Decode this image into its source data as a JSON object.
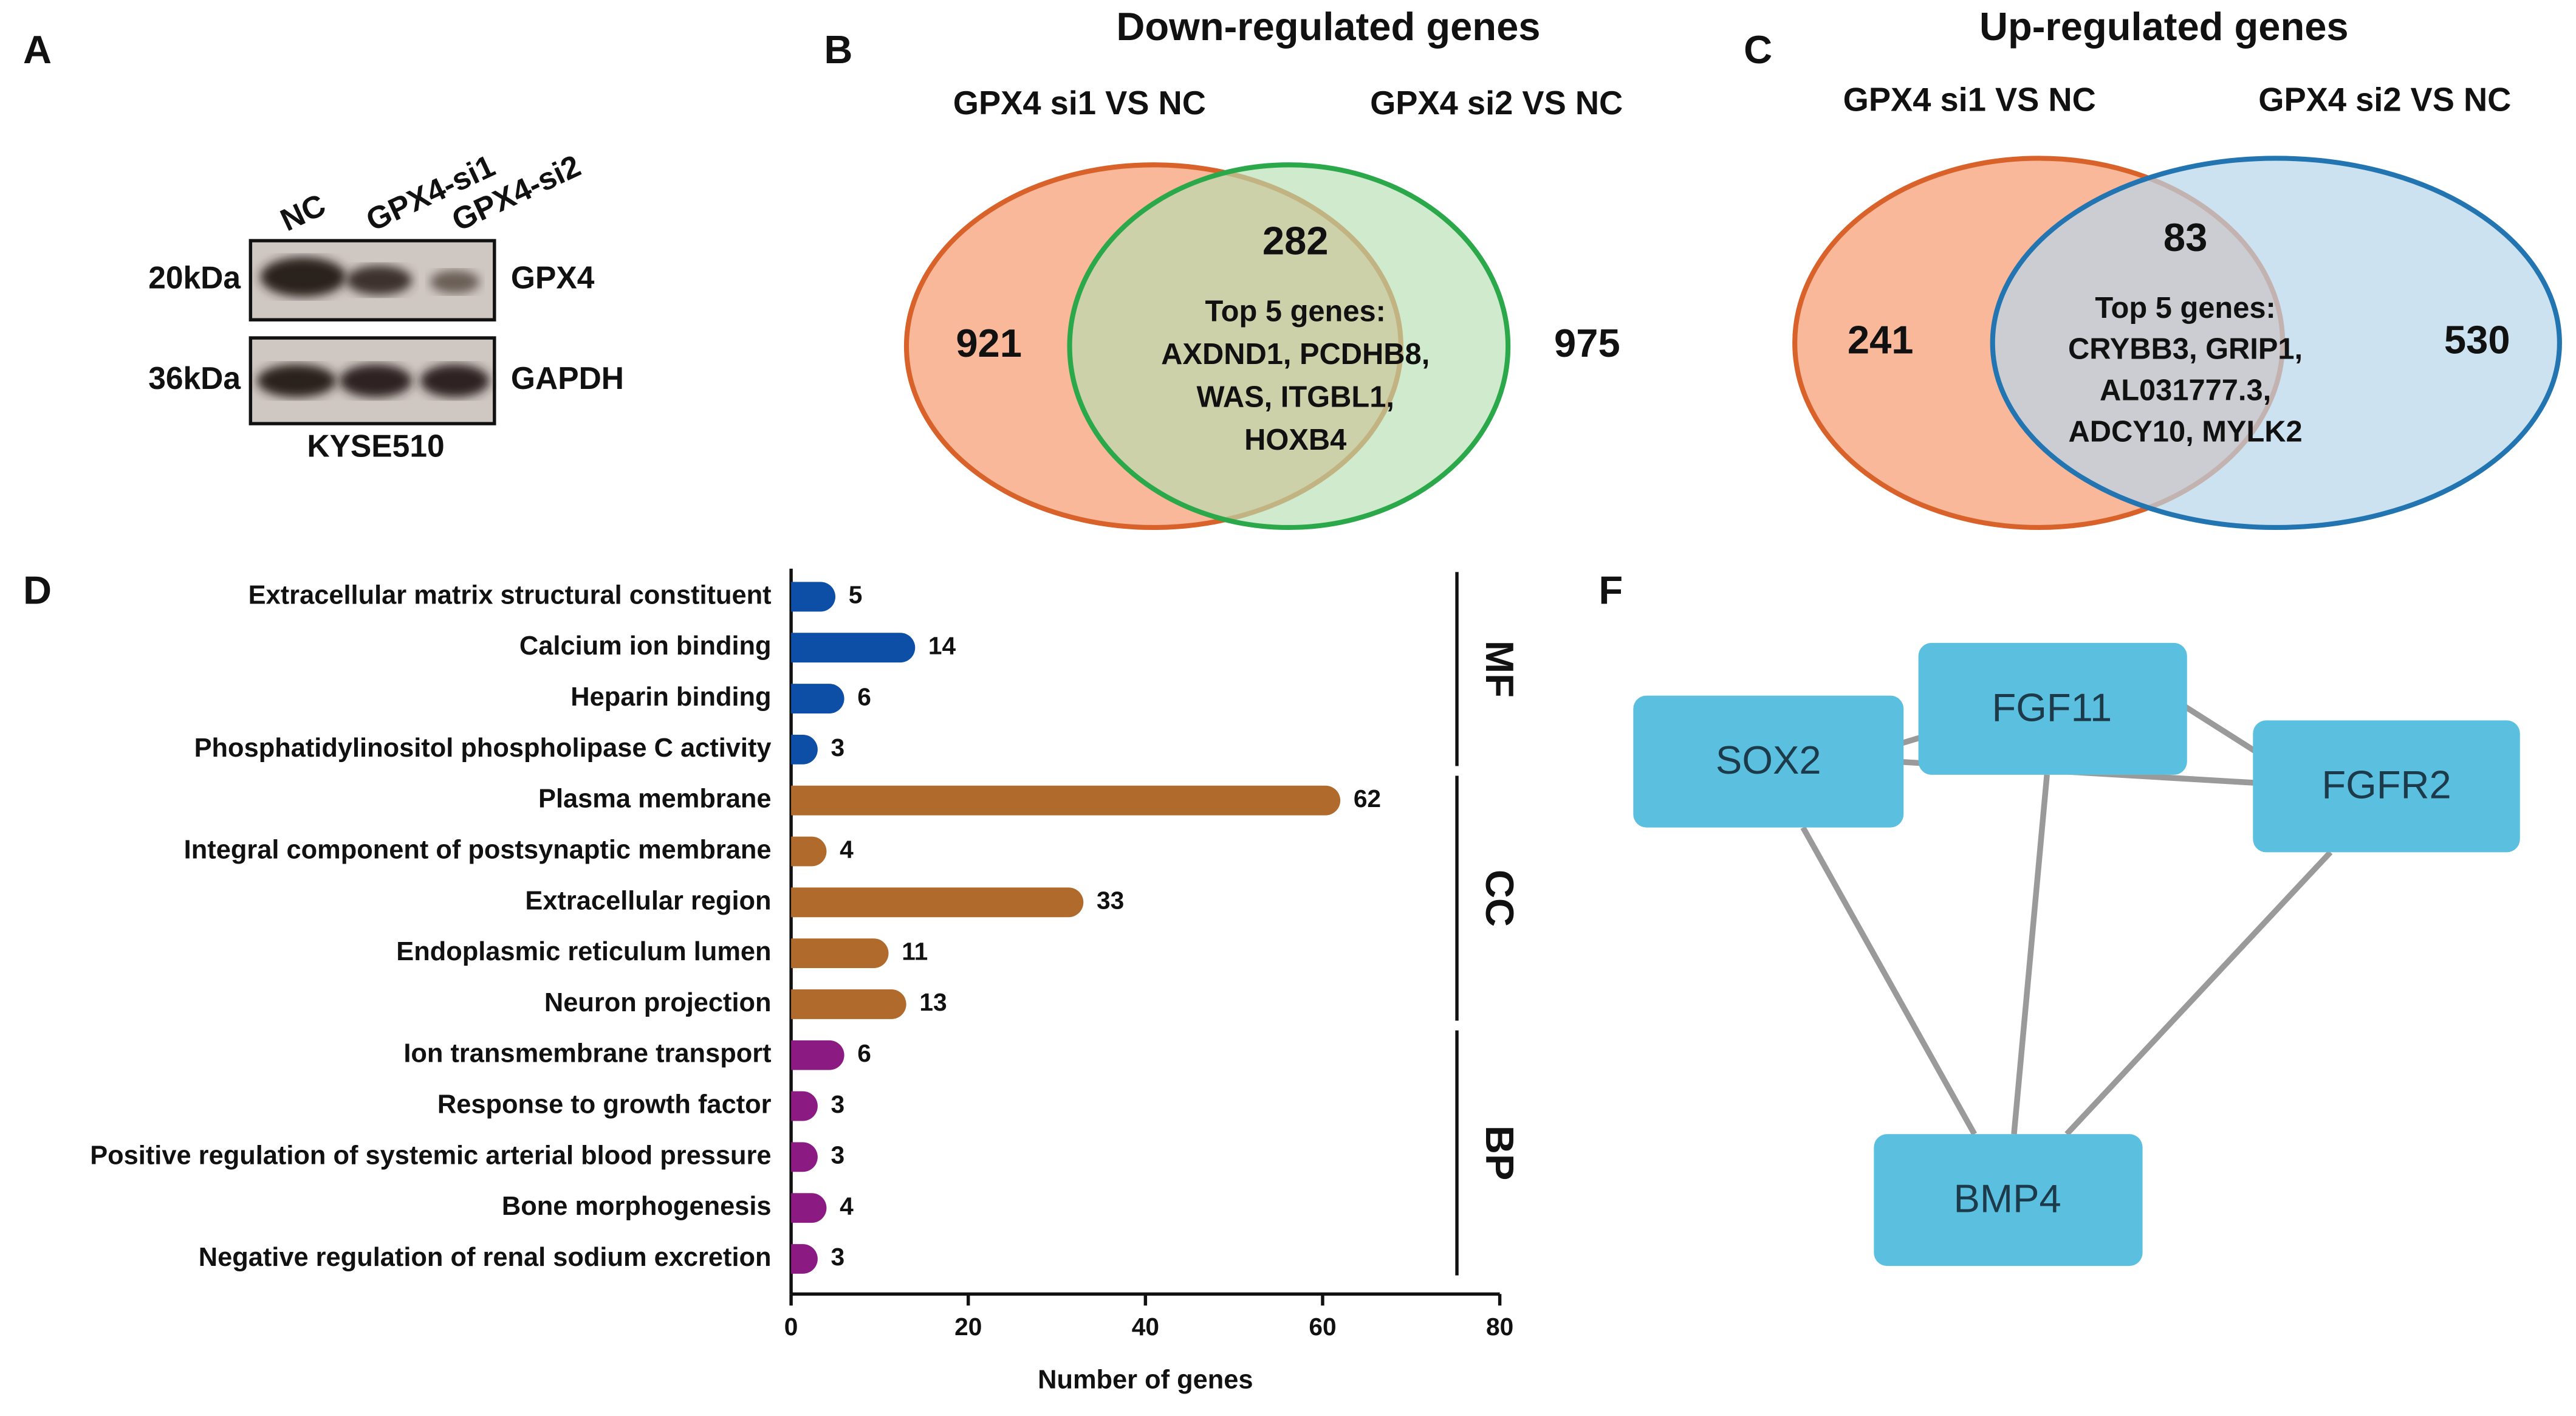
{
  "panel_a": {
    "panel_label": "A",
    "lanes": [
      "NC",
      "GPX4-si1",
      "GPX4-si2"
    ],
    "rows": [
      {
        "size": "20kDa",
        "protein": "GPX4"
      },
      {
        "size": "36kDa",
        "protein": "GAPDH"
      }
    ],
    "cell_line": "KYSE510"
  },
  "panel_b": {
    "panel_label": "B",
    "title": "Down-regulated genes",
    "left_set": "GPX4 si1 VS NC",
    "right_set": "GPX4 si2 VS NC",
    "left_only": 921,
    "overlap": 282,
    "right_only": 975,
    "top_genes": [
      "Top 5 genes:",
      "AXDND1, PCDHB8,",
      "WAS, ITGBL1,",
      "HOXB4"
    ]
  },
  "panel_c": {
    "panel_label": "C",
    "title": "Up-regulated genes",
    "left_set": "GPX4 si1 VS NC",
    "right_set": "GPX4 si2 VS NC",
    "left_only": 241,
    "overlap": 83,
    "right_only": 530,
    "top_genes": [
      "Top 5 genes:",
      "CRYBB3, GRIP1,",
      "AL031777.3,",
      "ADCY10, MYLK2"
    ]
  },
  "chart_data": {
    "type": "bar",
    "panel_label": "D",
    "orientation": "horizontal",
    "xlabel": "Number of genes",
    "xlim": [
      0,
      80
    ],
    "xticks": [
      0,
      20,
      40,
      60,
      80
    ],
    "groups": [
      {
        "name": "MF",
        "color": "#0d4ea6",
        "categories": [
          "Extracellular matrix structural constituent",
          "Calcium ion binding",
          "Heparin binding",
          "Phosphatidylinositol phospholipase C activity"
        ],
        "values": [
          5,
          14,
          6,
          3
        ]
      },
      {
        "name": "CC",
        "color": "#b06a2c",
        "categories": [
          "Plasma membrane",
          "Integral component of postsynaptic membrane",
          "Extracellular region",
          "Endoplasmic reticulum lumen",
          "Neuron projection"
        ],
        "values": [
          62,
          4,
          33,
          11,
          13
        ]
      },
      {
        "name": "BP",
        "color": "#8b1a82",
        "categories": [
          "Ion transmembrane transport",
          "Response to growth factor",
          "Positive regulation of systemic arterial blood pressure",
          "Bone morphogenesis",
          "Negative regulation of renal sodium excretion"
        ],
        "values": [
          6,
          3,
          3,
          4,
          3
        ]
      }
    ]
  },
  "panel_f": {
    "panel_label": "F",
    "nodes": [
      "SOX2",
      "FGF11",
      "FGFR2",
      "BMP4"
    ]
  }
}
